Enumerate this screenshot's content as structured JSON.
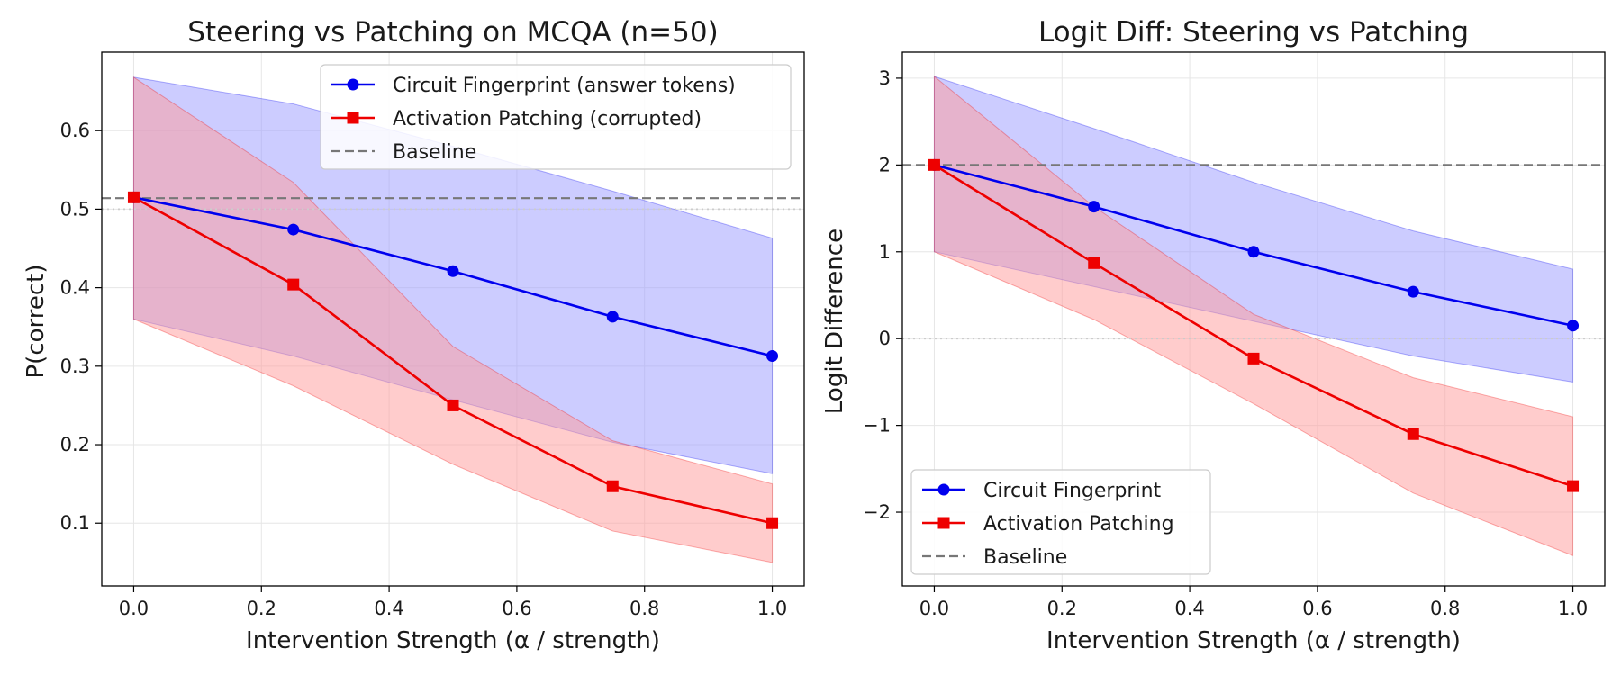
{
  "figure": {
    "background": "#ffffff"
  },
  "chart_data": [
    {
      "type": "line",
      "title": "Steering vs Patching on MCQA (n=50)",
      "xlabel": "Intervention Strength (α / strength)",
      "ylabel": "P(correct)",
      "xlim": [
        -0.05,
        1.05
      ],
      "ylim": [
        0.02,
        0.7
      ],
      "xticks": [
        0.0,
        0.2,
        0.4,
        0.6,
        0.8,
        1.0
      ],
      "xtick_labels": [
        "0.0",
        "0.2",
        "0.4",
        "0.6",
        "0.8",
        "1.0"
      ],
      "yticks": [
        0.1,
        0.2,
        0.3,
        0.4,
        0.5,
        0.6
      ],
      "ytick_labels": [
        "0.1",
        "0.2",
        "0.3",
        "0.4",
        "0.5",
        "0.6"
      ],
      "grid": true,
      "legend_position": "top-right",
      "x": [
        0.0,
        0.25,
        0.5,
        0.75,
        1.0
      ],
      "series": [
        {
          "name": "Circuit Fingerprint (answer tokens)",
          "color": "#0000ee",
          "marker": "circle",
          "values": [
            0.515,
            0.474,
            0.421,
            0.363,
            0.313
          ],
          "band_lower": [
            0.36,
            0.313,
            0.257,
            0.203,
            0.163
          ],
          "band_upper": [
            0.668,
            0.634,
            0.58,
            0.523,
            0.463
          ],
          "band_color": "#9999ff"
        },
        {
          "name": "Activation Patching (corrupted)",
          "color": "#ee0000",
          "marker": "square",
          "values": [
            0.515,
            0.404,
            0.25,
            0.147,
            0.1
          ],
          "band_lower": [
            0.36,
            0.275,
            0.175,
            0.09,
            0.05
          ],
          "band_upper": [
            0.668,
            0.534,
            0.325,
            0.205,
            0.15
          ],
          "band_color": "#ff9999"
        }
      ],
      "reference_lines": [
        {
          "name": "Baseline",
          "y": 0.514,
          "color": "#777777",
          "style": "dashed",
          "in_legend": true
        },
        {
          "name": "chance",
          "y": 0.5,
          "color": "#cccccc",
          "style": "dotted",
          "in_legend": false
        }
      ]
    },
    {
      "type": "line",
      "title": "Logit Diff: Steering vs Patching",
      "xlabel": "Intervention Strength (α / strength)",
      "ylabel": "Logit Difference",
      "xlim": [
        -0.05,
        1.05
      ],
      "ylim": [
        -2.85,
        3.3
      ],
      "xticks": [
        0.0,
        0.2,
        0.4,
        0.6,
        0.8,
        1.0
      ],
      "xtick_labels": [
        "0.0",
        "0.2",
        "0.4",
        "0.6",
        "0.8",
        "1.0"
      ],
      "yticks": [
        -2,
        -1,
        0,
        1,
        2,
        3
      ],
      "ytick_labels": [
        "−2",
        "−1",
        "0",
        "1",
        "2",
        "3"
      ],
      "grid": true,
      "legend_position": "bottom-left",
      "x": [
        0.0,
        0.25,
        0.5,
        0.75,
        1.0
      ],
      "series": [
        {
          "name": "Circuit Fingerprint",
          "color": "#0000ee",
          "marker": "circle",
          "values": [
            2.0,
            1.52,
            1.0,
            0.54,
            0.15
          ],
          "band_lower": [
            1.0,
            0.6,
            0.2,
            -0.2,
            -0.5
          ],
          "band_upper": [
            3.02,
            2.42,
            1.8,
            1.24,
            0.8
          ],
          "band_color": "#9999ff"
        },
        {
          "name": "Activation Patching",
          "color": "#ee0000",
          "marker": "square",
          "values": [
            2.0,
            0.87,
            -0.23,
            -1.1,
            -1.7
          ],
          "band_lower": [
            1.0,
            0.22,
            -0.75,
            -1.78,
            -2.5
          ],
          "band_upper": [
            3.02,
            1.52,
            0.28,
            -0.45,
            -0.9
          ],
          "band_color": "#ff9999"
        }
      ],
      "reference_lines": [
        {
          "name": "Baseline",
          "y": 2.0,
          "color": "#777777",
          "style": "dashed",
          "in_legend": true
        },
        {
          "name": "zero",
          "y": 0.0,
          "color": "#cccccc",
          "style": "dotted",
          "in_legend": false
        }
      ]
    }
  ]
}
